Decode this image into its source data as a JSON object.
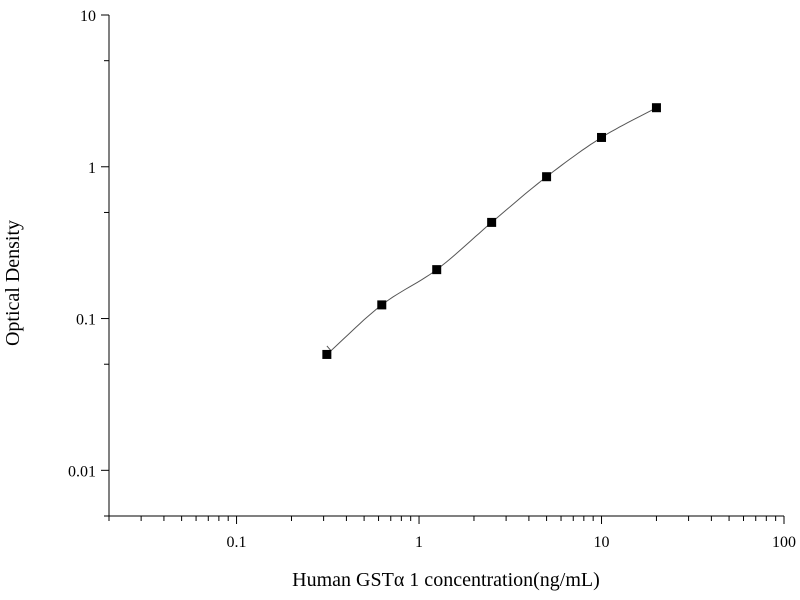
{
  "chart_data": {
    "type": "scatter",
    "title": "",
    "xlabel": "Human GSTα 1 concentration(ng/mL)",
    "ylabel": "Optical Density",
    "xscale": "log",
    "yscale": "log",
    "xlim": [
      0.02,
      100
    ],
    "ylim": [
      0.005,
      10
    ],
    "x_ticks": [
      {
        "value": 0.1,
        "label": "0.1"
      },
      {
        "value": 1,
        "label": "1"
      },
      {
        "value": 10,
        "label": "10"
      },
      {
        "value": 100,
        "label": "100"
      }
    ],
    "y_ticks": [
      {
        "value": 0.01,
        "label": "0.01"
      },
      {
        "value": 0.1,
        "label": "0.1"
      },
      {
        "value": 1,
        "label": "1"
      },
      {
        "value": 10,
        "label": "10"
      }
    ],
    "grid": false,
    "legend": "none",
    "marker_color": "#000000",
    "fit_line_color": "#555555",
    "series": [
      {
        "x": [
          0.3125,
          0.625,
          1.25,
          2.5,
          5,
          10,
          20
        ],
        "y": [
          0.058,
          0.123,
          0.21,
          0.43,
          0.86,
          1.56,
          2.45
        ]
      }
    ]
  }
}
